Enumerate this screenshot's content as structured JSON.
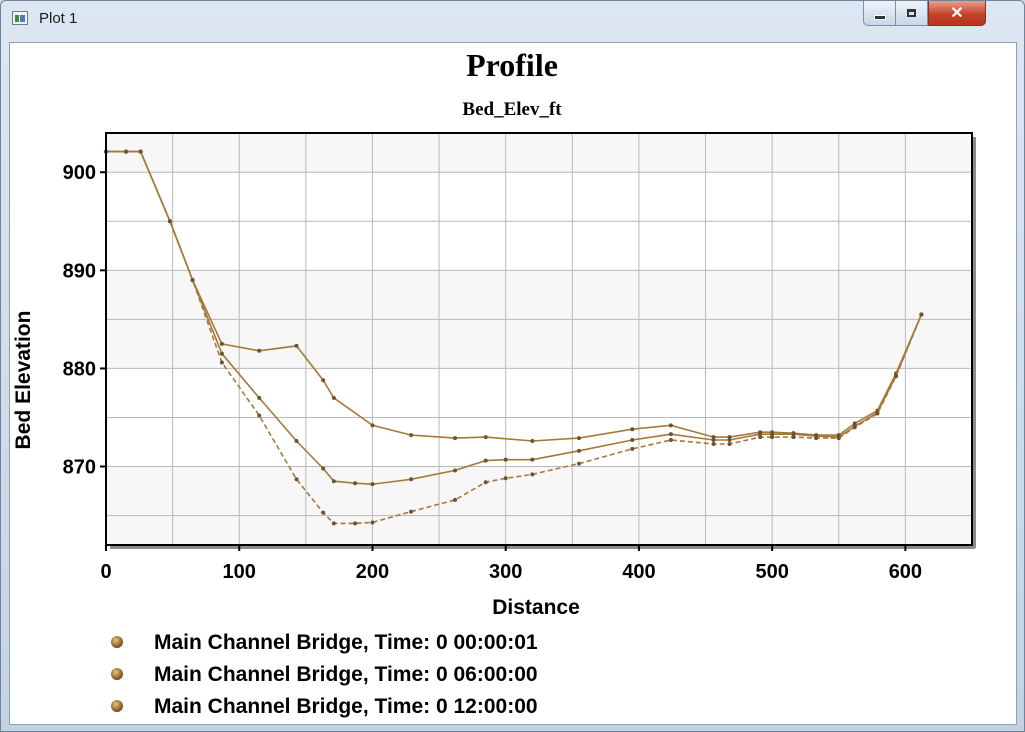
{
  "window": {
    "title": "Plot 1",
    "controls": {
      "minimize": "minimize",
      "maximize": "maximize",
      "close": "✕"
    }
  },
  "colors": {
    "series": [
      "#a5793a",
      "#a5793a",
      "#a5793a"
    ],
    "plot_bg_band": "#f7f7f7",
    "grid": "#b9b9b9"
  },
  "chart_data": {
    "type": "line",
    "title": "Profile",
    "subtitle": "Bed_Elev_ft",
    "xlabel": "Distance",
    "ylabel": "Bed Elevation",
    "xlim": [
      0,
      650
    ],
    "ylim": [
      862,
      904
    ],
    "xticks": [
      0,
      100,
      200,
      300,
      400,
      500,
      600
    ],
    "yticks": [
      870,
      880,
      890,
      900
    ],
    "grid": true,
    "legend_position": "bottom-left",
    "series": [
      {
        "name": "Main Channel Bridge, Time: 0 00:00:01",
        "dash": "solid",
        "points": [
          [
            0,
            902.1
          ],
          [
            15,
            902.1
          ],
          [
            26,
            902.1
          ],
          [
            48,
            895
          ],
          [
            65,
            889
          ],
          [
            87,
            882.5
          ],
          [
            115,
            881.8
          ],
          [
            143,
            882.3
          ],
          [
            163,
            878.8
          ],
          [
            171,
            877
          ],
          [
            200,
            874.2
          ],
          [
            229,
            873.2
          ],
          [
            262,
            872.9
          ],
          [
            285,
            873
          ],
          [
            320,
            872.6
          ],
          [
            355,
            872.9
          ],
          [
            395,
            873.8
          ],
          [
            424,
            874.2
          ],
          [
            456,
            873
          ],
          [
            468,
            873
          ],
          [
            491,
            873.5
          ],
          [
            500,
            873.5
          ],
          [
            516,
            873.4
          ],
          [
            533,
            873.2
          ],
          [
            550,
            873.2
          ],
          [
            562,
            874.4
          ],
          [
            579,
            875.7
          ],
          [
            593,
            879.5
          ],
          [
            612,
            885.5
          ]
        ]
      },
      {
        "name": "Main Channel Bridge, Time: 0 06:00:00",
        "dash": "solid",
        "points": [
          [
            0,
            902.1
          ],
          [
            15,
            902.1
          ],
          [
            26,
            902.1
          ],
          [
            48,
            895
          ],
          [
            65,
            889
          ],
          [
            87,
            881.5
          ],
          [
            115,
            877
          ],
          [
            143,
            872.6
          ],
          [
            163,
            869.8
          ],
          [
            171,
            868.5
          ],
          [
            187,
            868.3
          ],
          [
            200,
            868.2
          ],
          [
            229,
            868.7
          ],
          [
            262,
            869.6
          ],
          [
            285,
            870.6
          ],
          [
            300,
            870.7
          ],
          [
            320,
            870.7
          ],
          [
            355,
            871.6
          ],
          [
            395,
            872.7
          ],
          [
            424,
            873.3
          ],
          [
            456,
            872.7
          ],
          [
            468,
            872.7
          ],
          [
            491,
            873.3
          ],
          [
            500,
            873.3
          ],
          [
            516,
            873.3
          ],
          [
            533,
            873.1
          ],
          [
            550,
            873
          ],
          [
            562,
            874.1
          ],
          [
            579,
            875.5
          ],
          [
            593,
            879.3
          ],
          [
            612,
            885.5
          ]
        ]
      },
      {
        "name": "Main Channel Bridge, Time: 0 12:00:00",
        "dash": "dashed",
        "points": [
          [
            0,
            902.1
          ],
          [
            15,
            902.1
          ],
          [
            26,
            902.1
          ],
          [
            48,
            895
          ],
          [
            65,
            889
          ],
          [
            87,
            880.6
          ],
          [
            115,
            875.2
          ],
          [
            143,
            868.7
          ],
          [
            163,
            865.3
          ],
          [
            171,
            864.2
          ],
          [
            187,
            864.2
          ],
          [
            200,
            864.3
          ],
          [
            229,
            865.4
          ],
          [
            262,
            866.6
          ],
          [
            285,
            868.4
          ],
          [
            300,
            868.8
          ],
          [
            320,
            869.2
          ],
          [
            355,
            870.3
          ],
          [
            395,
            871.8
          ],
          [
            424,
            872.7
          ],
          [
            456,
            872.3
          ],
          [
            468,
            872.3
          ],
          [
            491,
            873
          ],
          [
            500,
            873
          ],
          [
            516,
            873
          ],
          [
            533,
            872.9
          ],
          [
            550,
            872.9
          ],
          [
            562,
            874
          ],
          [
            579,
            875.4
          ],
          [
            593,
            879.2
          ],
          [
            612,
            885.5
          ]
        ]
      }
    ]
  }
}
